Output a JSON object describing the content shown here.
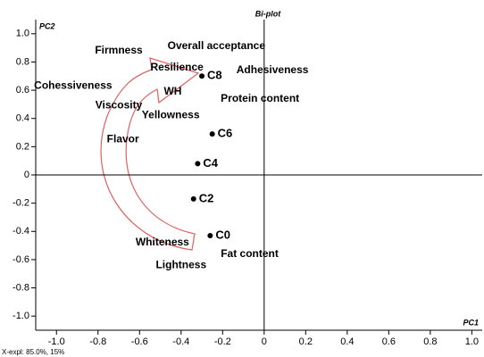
{
  "chart_data": {
    "type": "scatter",
    "title": "Bi-plot",
    "xlabel": "PC1",
    "ylabel": "PC2",
    "note": "X-expl: 85.0%, 15%",
    "xlim": [
      -1.1,
      1.05
    ],
    "ylim": [
      -1.1,
      1.1
    ],
    "xticks": [
      {
        "value": -1.0,
        "label": "-1.0"
      },
      -0.8,
      -0.6,
      -0.4,
      -0.2,
      0,
      0.2,
      0.4,
      0.6,
      0.8,
      {
        "value": 1.0,
        "label": "1.0"
      }
    ],
    "yticks": [
      {
        "value": 1.0,
        "label": "1.0"
      },
      0.8,
      0.6,
      0.4,
      0.2,
      0,
      -0.2,
      -0.4,
      -0.6,
      -0.8,
      {
        "value": -1.0,
        "label": "-1.0"
      }
    ],
    "points": {
      "labels": [
        "C8",
        "C6",
        "C4",
        "C2",
        "C0"
      ],
      "x": [
        -0.3,
        -0.25,
        -0.32,
        -0.34,
        -0.26
      ],
      "y": [
        0.7,
        0.29,
        0.08,
        -0.17,
        -0.43
      ],
      "color": "#000000"
    },
    "variables": {
      "labels": [
        "Firmness",
        "Overall acceptance",
        "Resilience",
        "Adhesiveness",
        "Cohessiveness",
        "WH",
        "Protein content",
        "Viscosity",
        "Yellowness",
        "Flavor",
        "Whiteness",
        "Fat content",
        "Lightness"
      ],
      "x": [
        -0.7,
        -0.23,
        -0.42,
        0.04,
        -0.92,
        -0.44,
        -0.02,
        -0.7,
        -0.45,
        -0.68,
        -0.49,
        -0.07,
        -0.4
      ],
      "y": [
        0.88,
        0.91,
        0.76,
        0.74,
        0.63,
        0.59,
        0.54,
        0.49,
        0.42,
        0.25,
        -0.48,
        -0.56,
        -0.64
      ]
    }
  }
}
